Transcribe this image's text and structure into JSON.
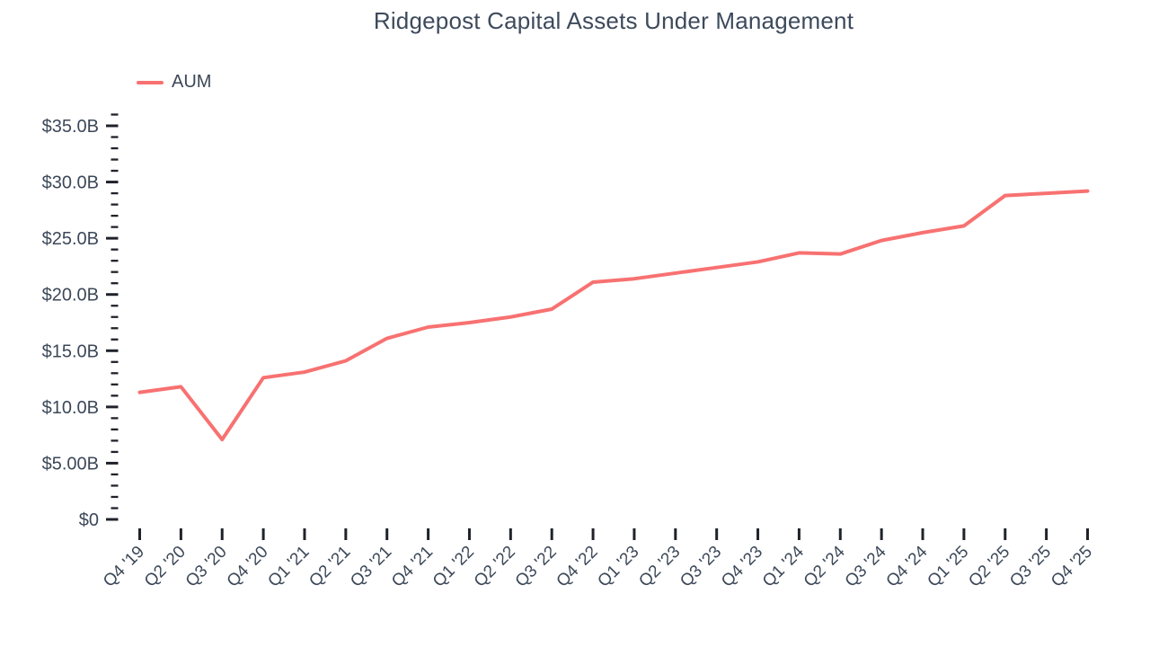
{
  "chart": {
    "title": "Ridgepost Capital Assets Under Management",
    "legend": {
      "items": [
        {
          "label": "AUM",
          "color": "#f87171"
        }
      ]
    },
    "colors": {
      "line": "#f87171",
      "text": "#3c4858",
      "tick": "#1f2329",
      "background": "#ffffff"
    }
  },
  "chart_data": {
    "type": "line",
    "title": "Ridgepost Capital Assets Under Management",
    "xlabel": "",
    "ylabel": "",
    "x": [
      "Q4 '19",
      "Q2 '20",
      "Q3 '20",
      "Q4 '20",
      "Q1 '21",
      "Q2 '21",
      "Q3 '21",
      "Q4 '21",
      "Q1 '22",
      "Q2 '22",
      "Q3 '22",
      "Q4 '22",
      "Q1 '23",
      "Q2 '23",
      "Q3 '23",
      "Q4 '23",
      "Q1 '24",
      "Q2 '24",
      "Q3 '24",
      "Q4 '24",
      "Q1 '25",
      "Q2 '25",
      "Q3 '25",
      "Q4 '25"
    ],
    "series": [
      {
        "name": "AUM",
        "color": "#f87171",
        "units": "USD billions",
        "values": [
          11.3,
          11.8,
          7.1,
          12.6,
          13.1,
          14.1,
          16.1,
          17.1,
          17.5,
          18.0,
          18.7,
          21.1,
          21.4,
          21.9,
          22.4,
          22.9,
          23.7,
          23.6,
          24.8,
          25.5,
          26.1,
          28.8,
          29.0,
          29.2
        ]
      }
    ],
    "ylim": [
      0,
      35
    ],
    "y_axis": {
      "major_tick_step_billions": 5,
      "minor_tick_step_billions": 1,
      "minor_tick_max_billions": 36,
      "tick_labels": [
        "$0",
        "$5.00B",
        "$10.0B",
        "$15.0B",
        "$20.0B",
        "$25.0B",
        "$30.0B",
        "$35.0B"
      ]
    },
    "legend_position": "top-left",
    "grid": false
  }
}
